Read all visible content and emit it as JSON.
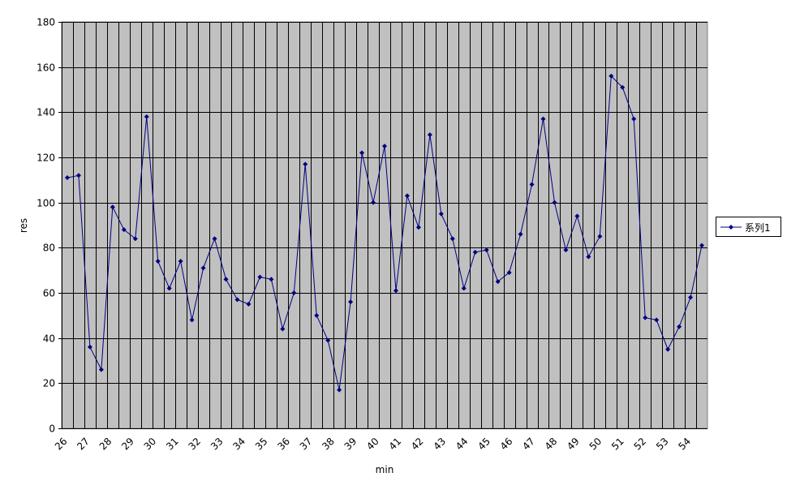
{
  "chart_data": {
    "type": "line",
    "title": "",
    "xlabel": "min",
    "ylabel": "res",
    "ylim": [
      0,
      180
    ],
    "y_ticks": [
      "0",
      "20",
      "40",
      "60",
      "80",
      "100",
      "120",
      "140",
      "160",
      "180"
    ],
    "x_ticks": [
      "26",
      "27",
      "28",
      "29",
      "30",
      "31",
      "32",
      "33",
      "34",
      "35",
      "36",
      "37",
      "38",
      "39",
      "40",
      "41",
      "42",
      "43",
      "44",
      "45",
      "46",
      "47",
      "48",
      "49",
      "50",
      "51",
      "52",
      "53",
      "54"
    ],
    "grid": true,
    "legend_position": "right",
    "plot_background": "#c0c0c0",
    "series_color": "#000080",
    "series": [
      {
        "name": "系列1",
        "values": [
          111,
          112,
          36,
          26,
          98,
          88,
          84,
          138,
          74,
          62,
          74,
          48,
          71,
          84,
          66,
          57,
          55,
          67,
          66,
          44,
          60,
          117,
          50,
          39,
          17,
          56,
          122,
          100,
          125,
          61,
          103,
          89,
          130,
          95,
          84,
          62,
          78,
          79,
          65,
          69,
          86,
          108,
          137,
          100,
          79,
          94,
          76,
          85,
          156,
          151,
          137,
          49,
          48,
          35,
          45,
          58,
          81
        ]
      }
    ]
  }
}
